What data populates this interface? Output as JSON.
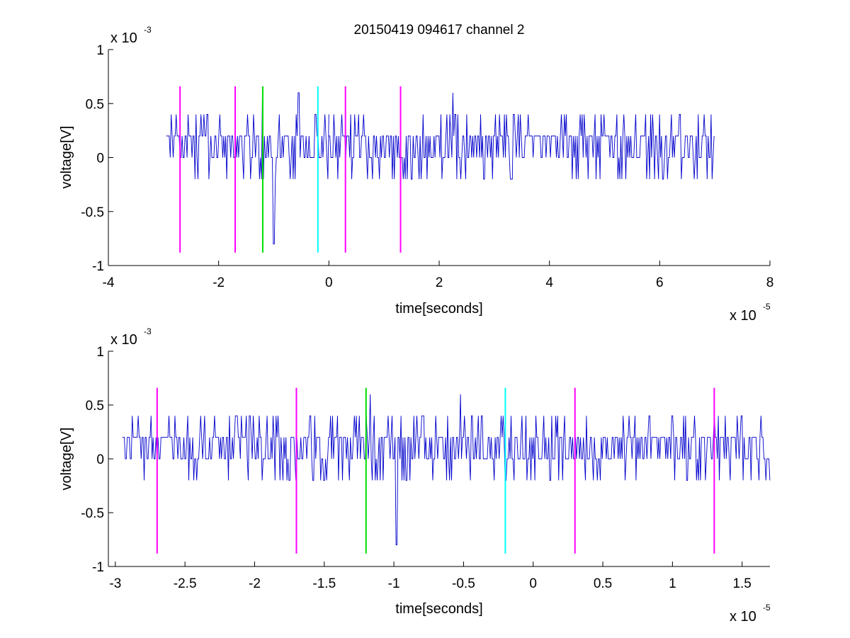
{
  "figure": {
    "title": "20150419 094617 channel 2",
    "background": "#ffffff"
  },
  "colors": {
    "trace": "#0000cc",
    "magenta": "#ff00ff",
    "green": "#00dd00",
    "cyan": "#00ffff",
    "axis": "#000000"
  },
  "chart_data": [
    {
      "type": "line",
      "id": "top",
      "xlabel": "time[seconds]",
      "ylabel": "voltage[V]",
      "x_exponent": {
        "base": "x 10",
        "power": "-5"
      },
      "y_exponent": {
        "base": "x 10",
        "power": "-3"
      },
      "xlim": [
        -4,
        8
      ],
      "ylim": [
        -1,
        1
      ],
      "xticks": [
        -4,
        -2,
        0,
        2,
        4,
        6,
        8
      ],
      "xtick_labels": [
        "-4",
        "-2",
        "0",
        "2",
        "4",
        "6",
        "8"
      ],
      "yticks": [
        -1,
        -0.5,
        0,
        0.5,
        1
      ],
      "ytick_labels": [
        "-1",
        "-0.5",
        "0",
        "0.5",
        "1"
      ],
      "grid": false,
      "series": [
        {
          "color": "trace",
          "levels": [
            -0.8,
            -0.2,
            0,
            0.2,
            0.4,
            0.6
          ],
          "segments": [
            {
              "x": [
                -2.95,
                0.0
              ],
              "base": 0.1,
              "noise": 0.2,
              "seed": 11
            },
            {
              "x": [
                0.0,
                4.0
              ],
              "base": 0.1,
              "noise": 0.2,
              "seed": 23
            },
            {
              "x": [
                4.0,
                7.0
              ],
              "base": 0.1,
              "noise": 0.2,
              "seed": 37
            }
          ],
          "events": [
            {
              "x": -1.0,
              "y": -0.8
            },
            {
              "x": -1.2,
              "y": 0.6
            },
            {
              "x": 2.25,
              "y": 0.6
            },
            {
              "x": -0.55,
              "y": 0.6
            }
          ]
        }
      ],
      "markers": [
        {
          "x": -2.7,
          "y": [
            -0.88,
            0.66
          ],
          "color": "magenta"
        },
        {
          "x": -1.7,
          "y": [
            -0.88,
            0.66
          ],
          "color": "magenta"
        },
        {
          "x": -1.2,
          "y": [
            -0.88,
            0.66
          ],
          "color": "green"
        },
        {
          "x": -0.2,
          "y": [
            -0.88,
            0.66
          ],
          "color": "cyan"
        },
        {
          "x": 0.3,
          "y": [
            -0.88,
            0.66
          ],
          "color": "magenta"
        },
        {
          "x": 1.3,
          "y": [
            -0.88,
            0.66
          ],
          "color": "magenta"
        }
      ]
    },
    {
      "type": "line",
      "id": "bottom",
      "xlabel": "time[seconds]",
      "ylabel": "voltage[V]",
      "x_exponent": {
        "base": "x 10",
        "power": "-5"
      },
      "y_exponent": {
        "base": "x 10",
        "power": "-3"
      },
      "xlim": [
        -3.05,
        1.7
      ],
      "ylim": [
        -1,
        1
      ],
      "xticks": [
        -3,
        -2.5,
        -2,
        -1.5,
        -1,
        -0.5,
        0,
        0.5,
        1,
        1.5
      ],
      "xtick_labels": [
        "-3",
        "-2.5",
        "-2",
        "-1.5",
        "-1",
        "-0.5",
        "0",
        "0.5",
        "1",
        "1.5"
      ],
      "yticks": [
        -1,
        -0.5,
        0,
        0.5,
        1
      ],
      "ytick_labels": [
        "-1",
        "-0.5",
        "0",
        "0.5",
        "1"
      ],
      "grid": false,
      "series": [
        {
          "color": "trace",
          "levels": [
            -0.8,
            -0.2,
            0,
            0.2,
            0.4,
            0.6
          ],
          "segments": [
            {
              "x": [
                -2.95,
                1.7
              ],
              "base": 0.1,
              "noise": 0.2,
              "seed": 53
            }
          ],
          "events": [
            {
              "x": -1.17,
              "y": 0.6
            },
            {
              "x": -0.98,
              "y": -0.8
            },
            {
              "x": -0.52,
              "y": 0.6
            }
          ]
        }
      ],
      "markers": [
        {
          "x": -2.7,
          "y": [
            -0.88,
            0.66
          ],
          "color": "magenta"
        },
        {
          "x": -1.7,
          "y": [
            -0.88,
            0.66
          ],
          "color": "magenta"
        },
        {
          "x": -1.2,
          "y": [
            -0.88,
            0.66
          ],
          "color": "green"
        },
        {
          "x": -0.2,
          "y": [
            -0.88,
            0.66
          ],
          "color": "cyan"
        },
        {
          "x": 0.3,
          "y": [
            -0.88,
            0.66
          ],
          "color": "magenta"
        },
        {
          "x": 1.3,
          "y": [
            -0.88,
            0.66
          ],
          "color": "magenta"
        }
      ]
    }
  ]
}
